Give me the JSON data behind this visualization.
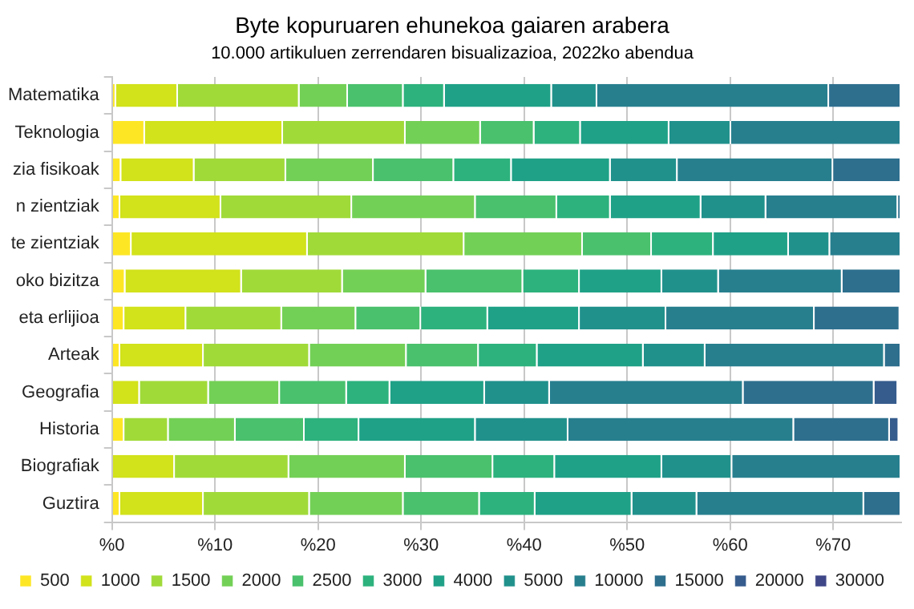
{
  "chart_data": {
    "type": "bar",
    "orientation": "horizontal",
    "stacked": true,
    "title": "Byte kopuruaren ehunekoa gaiaren arabera",
    "subtitle": "10.000 artikuluen zerrendaren bisualizazioa, 2022ko abendua",
    "categories": [
      "Matematika",
      "Teknologia",
      "zia fisikoak",
      "n zientziak",
      "te zientziak",
      "oko bizitza",
      "eta erlijioa",
      "Arteak",
      "Geografia",
      "Historia",
      "Biografiak",
      "Guztira"
    ],
    "series": [
      {
        "name": "500",
        "color": "#fde725",
        "values": [
          0.4,
          3.2,
          0.9,
          0.8,
          1.9,
          1.3,
          1.2,
          0.8,
          null,
          1.2,
          0,
          0.8
        ]
      },
      {
        "name": "1000",
        "color": "#d2e21b",
        "values": [
          6.0,
          13.4,
          7.1,
          9.8,
          17.1,
          11.3,
          6.0,
          8.1,
          2.7,
          0,
          6.1,
          8.1
        ]
      },
      {
        "name": "1500",
        "color": "#a0da39",
        "values": [
          11.8,
          11.9,
          8.9,
          12.7,
          15.2,
          9.8,
          9.3,
          10.3,
          6.7,
          4.3,
          11.1,
          10.3
        ]
      },
      {
        "name": "2000",
        "color": "#73d056",
        "values": [
          4.7,
          7.3,
          8.5,
          12.0,
          11.5,
          8.1,
          7.2,
          9.4,
          6.9,
          6.5,
          11.3,
          9.1
        ]
      },
      {
        "name": "2500",
        "color": "#4ac16d",
        "values": [
          5.4,
          5.2,
          7.8,
          7.9,
          6.7,
          9.4,
          6.3,
          7.0,
          6.5,
          6.7,
          8.5,
          7.4
        ]
      },
      {
        "name": "3000",
        "color": "#2db27d",
        "values": [
          4.0,
          4.5,
          5.6,
          5.2,
          6.0,
          5.5,
          6.5,
          5.7,
          4.2,
          5.3,
          6.0,
          5.4
        ]
      },
      {
        "name": "4000",
        "color": "#1fa187",
        "values": [
          10.4,
          8.6,
          9.6,
          8.8,
          7.3,
          8.0,
          8.9,
          10.3,
          9.2,
          11.3,
          10.4,
          9.4
        ]
      },
      {
        "name": "5000",
        "color": "#21918c",
        "values": [
          4.4,
          6.0,
          6.5,
          6.3,
          4.0,
          5.5,
          8.4,
          6.0,
          6.3,
          9.0,
          6.8,
          6.3
        ]
      },
      {
        "name": "10000",
        "color": "#277f8e",
        "values": [
          22.5,
          16.5,
          15.1,
          12.8,
          6.9,
          12.0,
          14.4,
          17.4,
          18.8,
          21.9,
          16.4,
          16.2
        ]
      },
      {
        "name": "15000",
        "color": "#2e6f8e",
        "values": [
          7.0,
          0,
          6.6,
          0.3,
          0,
          5.7,
          8.3,
          1.6,
          12.7,
          9.3,
          0,
          3.6
        ]
      },
      {
        "name": "20000",
        "color": "#365c8d",
        "values": [
          0,
          0,
          0,
          0,
          0,
          0,
          0,
          0,
          2.3,
          0.9,
          0,
          0
        ]
      },
      {
        "name": "30000",
        "color": "#3f4788",
        "values": [
          0,
          0,
          0,
          0,
          0,
          0,
          0,
          0,
          0,
          0,
          0,
          0
        ]
      }
    ],
    "xlim": [
      0,
      76.6
    ],
    "xticks": [
      {
        "value": 0,
        "label": "%0"
      },
      {
        "value": 10,
        "label": "%10"
      },
      {
        "value": 20,
        "label": "%20"
      },
      {
        "value": 30,
        "label": "%30"
      },
      {
        "value": 40,
        "label": "%40"
      },
      {
        "value": 50,
        "label": "%50"
      },
      {
        "value": 60,
        "label": "%60"
      },
      {
        "value": 70,
        "label": "%70"
      }
    ],
    "grid": "x",
    "legend": "bottom"
  }
}
